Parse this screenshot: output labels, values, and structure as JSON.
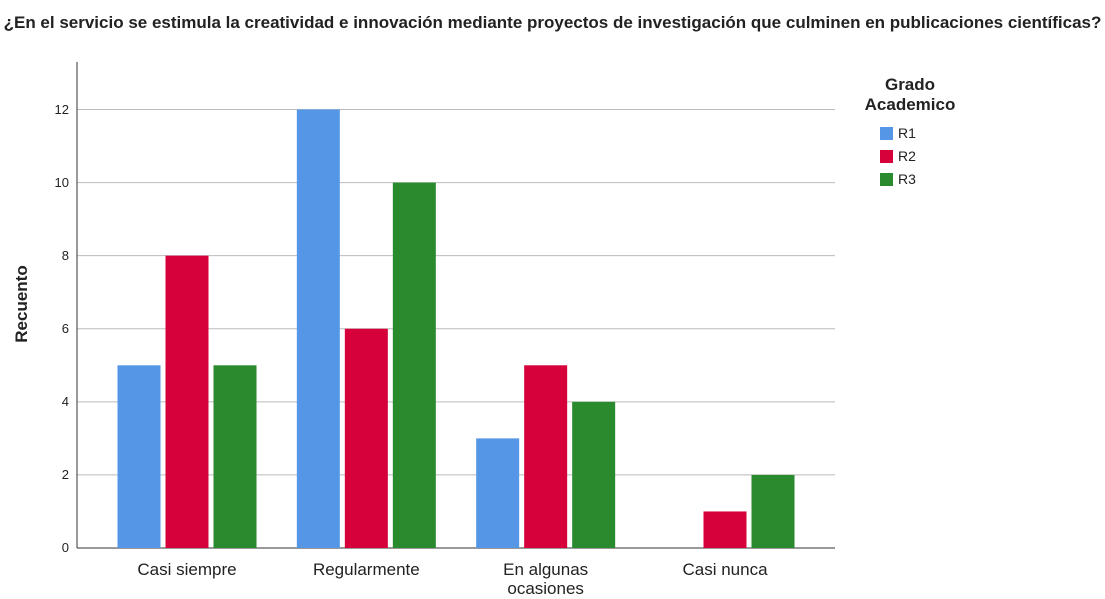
{
  "chart_data": {
    "type": "bar",
    "title": "¿En el servicio se estimula la creatividad e innovación mediante proyectos de investigación que culminen en publicaciones científicas?",
    "ylabel": "Recuento",
    "categories": [
      "Casi siempre",
      "Regularmente",
      "En algunas ocasiones",
      "Casi nunca"
    ],
    "legend_title": "Grado Academico",
    "series": [
      {
        "name": "R1",
        "color": "#5597e6",
        "values": [
          5,
          12,
          3,
          0
        ]
      },
      {
        "name": "R2",
        "color": "#d6003a",
        "values": [
          8,
          6,
          5,
          1
        ]
      },
      {
        "name": "R3",
        "color": "#2a8a2e",
        "values": [
          5,
          10,
          4,
          2
        ]
      }
    ],
    "ylim": [
      0,
      13.3
    ],
    "yticks": [
      0,
      2,
      4,
      6,
      8,
      10,
      12
    ],
    "grid": true,
    "legend": "right"
  }
}
